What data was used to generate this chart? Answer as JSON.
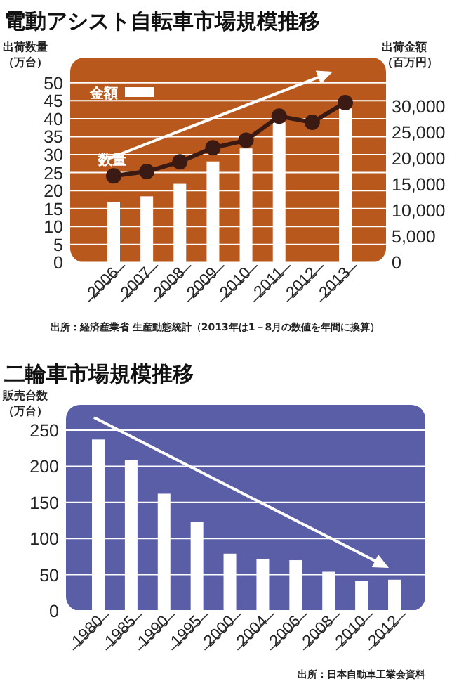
{
  "chart_data": [
    {
      "type": "bar",
      "title": "電動アシスト自転車市場規模推移",
      "ylabel": "出荷数量（万台）",
      "y2label": "出荷金額（百万円）",
      "categories": [
        "2006",
        "2007",
        "2008",
        "2009",
        "2010",
        "2011",
        "2012",
        "2013"
      ],
      "series": [
        {
          "name": "金額",
          "type": "bar",
          "axis": "y2",
          "color": "#ffffff",
          "values": [
            11600,
            12700,
            15100,
            19400,
            21900,
            26900,
            null,
            29600
          ]
        },
        {
          "name": "数量",
          "type": "line",
          "color": "#3a1a12",
          "values": [
            24.1,
            25.3,
            28.0,
            31.9,
            34.0,
            40.7,
            39.0,
            44.5
          ]
        }
      ],
      "ylim": [
        0,
        57
      ],
      "yticks": [
        0,
        5,
        10,
        15,
        20,
        25,
        30,
        35,
        40,
        45,
        50
      ],
      "y2lim": [
        0,
        39350
      ],
      "y2ticks": [
        0,
        {
          "value": 5000,
          "label": "5,000"
        },
        {
          "value": 10000,
          "label": "10,000"
        },
        {
          "value": 15000,
          "label": "15,000"
        },
        {
          "value": 20000,
          "label": "20,000"
        },
        {
          "value": 25000,
          "label": "25,000"
        },
        {
          "value": 30000,
          "label": "30,000"
        }
      ],
      "grid": "y",
      "legend": "top left",
      "marker": "circle",
      "annotations": [
        "出所：経済産業省 生産動態統計（2013年は1－8月の数値を年間に換算）"
      ]
    },
    {
      "type": "bar",
      "title": "二輪車市場規模推移",
      "ylabel": "販売台数（万台）",
      "categories": [
        "1980",
        "1985",
        "1990",
        "1995",
        "2000",
        "2004",
        "2006",
        "2008",
        "2010",
        "2012"
      ],
      "values": [
        237,
        209,
        162,
        123,
        79,
        72,
        70,
        54,
        41,
        43
      ],
      "color": "#ffffff",
      "ylim": [
        0,
        285
      ],
      "yticks": [
        0,
        50,
        100,
        150,
        200,
        250
      ],
      "grid": "y",
      "annotations": [
        "出所：日本自動車工業会資料"
      ]
    }
  ]
}
